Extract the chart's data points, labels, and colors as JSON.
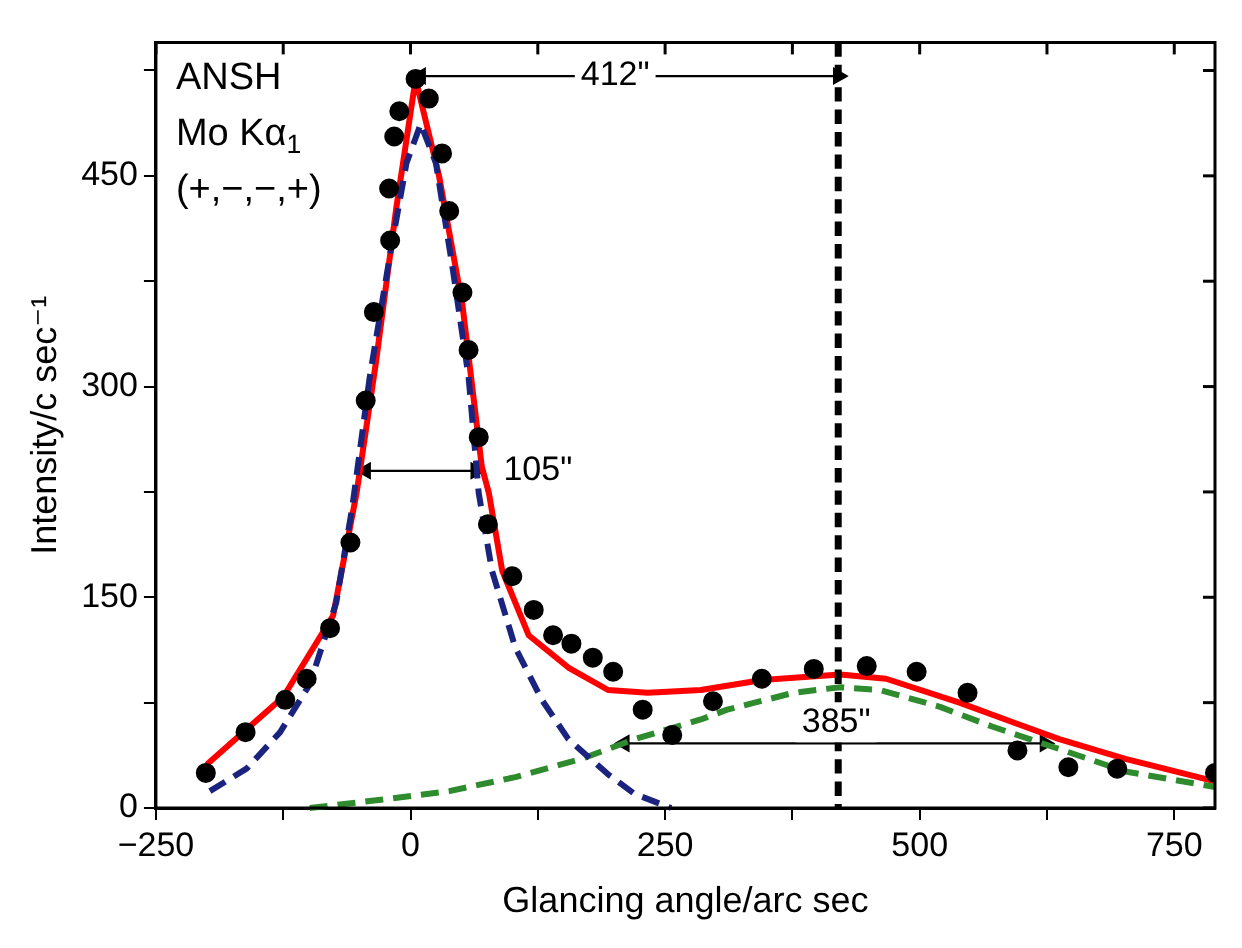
{
  "chart_data": {
    "type": "scatter",
    "xlabel": "Glancing angle/arc sec",
    "ylabel": "Intensity/c sec⁻¹",
    "xlim": [
      -250,
      790
    ],
    "ylim": [
      0,
      545
    ],
    "xticks": [
      -250,
      {
        "value": -125,
        "label": null
      },
      0,
      {
        "value": 125,
        "label": null
      },
      250,
      {
        "value": 375,
        "label": null
      },
      500,
      {
        "value": 625,
        "label": null
      },
      750
    ],
    "yticks": [
      0,
      {
        "value": 75,
        "label": null
      },
      150,
      {
        "value": 225,
        "label": null
      },
      300,
      {
        "value": 375,
        "label": null
      },
      450,
      {
        "value": 525,
        "label": null
      }
    ],
    "grid": false,
    "legend": false,
    "series": [
      {
        "color": "#000000",
        "marker": "circle",
        "x": [
          -201,
          -162,
          -123,
          -102,
          -79,
          -59,
          -44,
          -36,
          -20,
          -21,
          -16,
          -11,
          5,
          18,
          31,
          38,
          51,
          57,
          67,
          76,
          100,
          121,
          140,
          158,
          179,
          199,
          228,
          257,
          297,
          345,
          396,
          448,
          497,
          547,
          596,
          646,
          694,
          790
        ],
        "values": [
          25,
          54,
          77,
          92,
          128,
          189,
          290,
          353,
          404,
          441,
          478,
          496,
          519,
          505,
          466,
          425,
          367,
          326,
          264,
          202,
          165,
          141,
          123,
          117,
          107,
          97,
          70,
          52,
          76,
          92,
          99,
          101,
          97,
          82,
          41,
          29,
          28,
          25
        ]
      },
      {
        "type": "line",
        "color": "#1a237e",
        "line_style": "dashed",
        "marker": "none",
        "x": [
          -197,
          -161,
          -128,
          -99,
          -73,
          -57,
          -40,
          -21,
          -4,
          10,
          25,
          41,
          57,
          67,
          80,
          103,
          129,
          155,
          194,
          220,
          256
        ],
        "values": [
          12,
          28,
          54,
          88,
          146,
          215,
          307,
          390,
          459,
          487,
          459,
          386,
          307,
          224,
          169,
          114,
          77,
          49,
          24,
          10,
          0
        ]
      },
      {
        "type": "line",
        "color": "#2e8b2e",
        "line_style": "dashed",
        "marker": "none",
        "x": [
          -99,
          -27,
          38,
          103,
          168,
          220,
          285,
          311,
          376,
          422,
          461,
          520,
          571,
          637,
          702,
          790
        ],
        "values": [
          0,
          6,
          12,
          22,
          35,
          49,
          63,
          70,
          82,
          86,
          84,
          72,
          58,
          42,
          26,
          15
        ]
      },
      {
        "type": "line",
        "color": "#ff0000",
        "line_style": "solid",
        "marker": "none",
        "x": [
          -200,
          -125,
          -76,
          -53,
          -34,
          -14,
          5,
          28,
          51,
          70,
          77,
          90,
          116,
          155,
          194,
          233,
          285,
          344,
          422,
          467,
          539,
          637,
          702,
          790
        ],
        "values": [
          31,
          79,
          137,
          224,
          317,
          427,
          519,
          450,
          358,
          243,
          224,
          169,
          123,
          100,
          84,
          82,
          84,
          91,
          95,
          92,
          75,
          49,
          35,
          19
        ]
      },
      {
        "type": "line",
        "color": "#000000",
        "line_style": "solid",
        "marker": "triangle",
        "x": [
          10,
          420
        ],
        "values": [
          521,
          521
        ]
      },
      {
        "type": "line",
        "color": "#000000",
        "line_style": "solid",
        "marker": "triangle",
        "x": [
          -44,
          64
        ],
        "values": [
          240,
          240
        ]
      },
      {
        "type": "line",
        "color": "#000000",
        "line_style": "solid",
        "marker": "triangle",
        "x": [
          210,
          623
        ],
        "values": [
          46,
          46
        ]
      }
    ],
    "ref_lines": [
      {
        "axis": "x",
        "value": 420,
        "color": "#000000",
        "line_style": "dashed"
      }
    ],
    "annotations": [
      "ANSH",
      "Mo Kα$_{1}$",
      "(+,−,−,+)",
      {
        "text": "412\"",
        "x": 201,
        "y": 521
      },
      {
        "text": "105\"",
        "x": 125,
        "y": 240
      },
      {
        "text": "385\"",
        "x": 418,
        "y": 61
      }
    ]
  }
}
